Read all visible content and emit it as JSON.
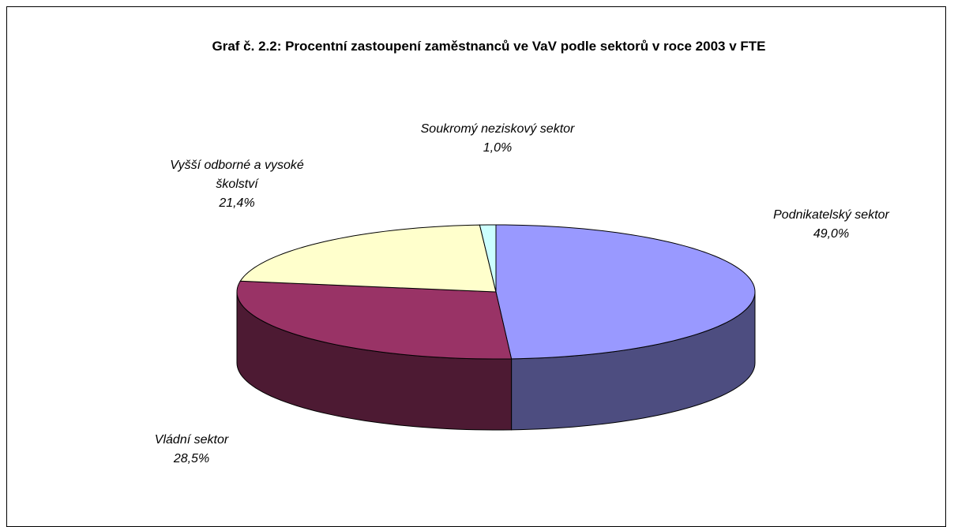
{
  "chart_data": {
    "type": "pie",
    "title": "Graf č. 2.2: Procentní zastoupení zaměstnanců ve VaV podle sektorů v roce 2003 v FTE",
    "categories": [
      "Podnikatelský sektor",
      "Vládní sektor",
      "Vyšší odborné a vysoké školství",
      "Soukromý neziskový sektor"
    ],
    "values": [
      49.0,
      28.5,
      21.4,
      1.0
    ],
    "value_labels": [
      "49,0%",
      "28,5%",
      "21,4%",
      "1,0%"
    ],
    "colors": [
      "#9999ff",
      "#993366",
      "#ffffcc",
      "#ccffff"
    ]
  }
}
